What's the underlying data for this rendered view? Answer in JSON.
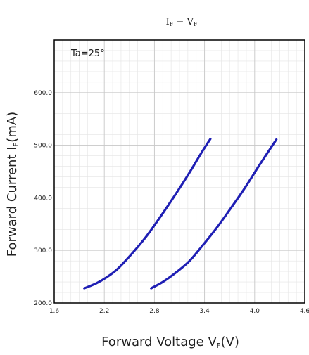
{
  "chart_data": {
    "type": "line",
    "title": "Iᵢ − Vᵢ",
    "title_main": "I",
    "title_sub1": "F",
    "title_mid": " − V",
    "title_sub2": "F",
    "xlabel": "Forward Voltage Vᵢ(V)",
    "xlabel_main": "Forward Voltage V",
    "xlabel_sub": "F",
    "xlabel_tail": "(V)",
    "ylabel_main": "Forward Current I",
    "ylabel_sub": "F",
    "ylabel_tail": "(mA)",
    "annotation": "Ta=25°",
    "xlim": [
      1.6,
      4.6
    ],
    "ylim": [
      200,
      700
    ],
    "x_ticks": [
      "1.6",
      "2.2",
      "2.8",
      "3.4",
      "4.0",
      "4.6"
    ],
    "x_tick_values": [
      1.6,
      2.2,
      2.8,
      3.4,
      4.0,
      4.6
    ],
    "y_ticks": [
      "200.0",
      "300.0",
      "400.0",
      "500.0",
      "600.0"
    ],
    "y_tick_values": [
      200,
      300,
      400,
      500,
      600
    ],
    "grid": true,
    "line_color": "#1f1fb4",
    "series": [
      {
        "x": [
          1.96,
          2.1,
          2.22,
          2.36,
          2.52,
          2.7,
          2.88,
          3.05,
          3.22,
          3.36,
          3.47
        ],
        "y": [
          228,
          237,
          248,
          265,
          292,
          326,
          366,
          406,
          448,
          485,
          512
        ]
      },
      {
        "x": [
          2.76,
          2.9,
          3.05,
          3.22,
          3.38,
          3.56,
          3.74,
          3.9,
          4.04,
          4.16,
          4.26
        ],
        "y": [
          228,
          240,
          257,
          280,
          310,
          346,
          386,
          423,
          458,
          487,
          511
        ]
      }
    ]
  }
}
